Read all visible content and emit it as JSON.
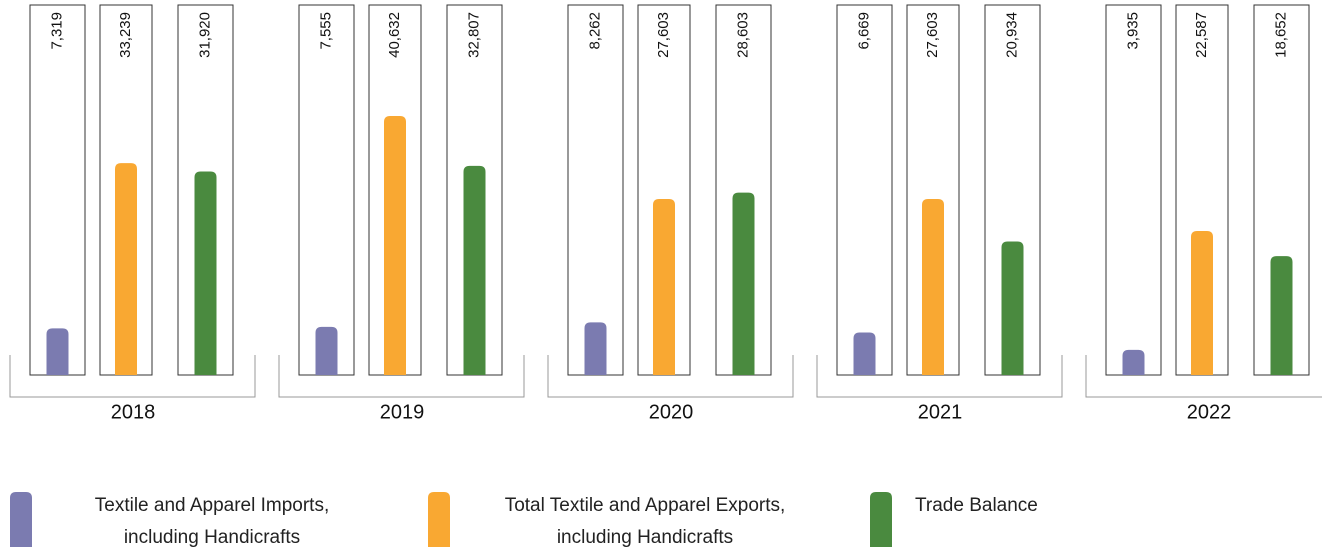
{
  "chart_data": {
    "type": "bar",
    "categories": [
      "2018",
      "2019",
      "2020",
      "2021",
      "2022"
    ],
    "series": [
      {
        "name": "Textile and Apparel Imports, including Handicrafts",
        "color": "#7b7bb0",
        "values": [
          7319,
          7555,
          8262,
          6669,
          3935
        ],
        "value_labels": [
          "7,319",
          "7,555",
          "8,262",
          "6,669",
          "3,935"
        ]
      },
      {
        "name": "Total Textile and Apparel Exports, including Handicrafts",
        "color": "#f9a832",
        "values": [
          33239,
          40632,
          27603,
          27603,
          22587
        ],
        "value_labels": [
          "33,239",
          "40,632",
          "27,603",
          "27,603",
          "22,587"
        ]
      },
      {
        "name": "Trade Balance",
        "color": "#4a8a3f",
        "values": [
          31920,
          32807,
          28603,
          20934,
          18652
        ],
        "value_labels": [
          "31,920",
          "32,807",
          "28,603",
          "20,934",
          "18,652"
        ]
      }
    ]
  }
}
